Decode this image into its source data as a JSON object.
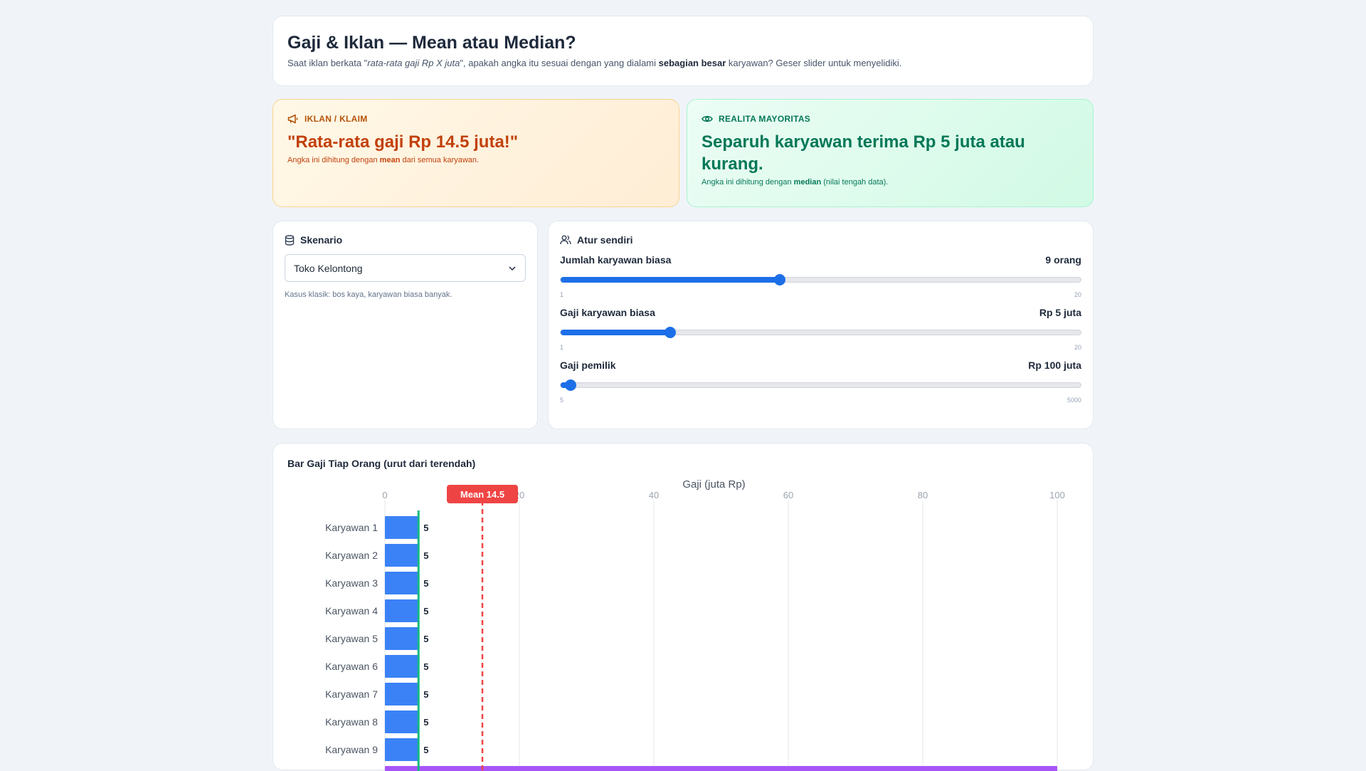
{
  "header": {
    "title": "Gaji & Iklan — Mean atau Median?",
    "subtitle_pre": "Saat iklan berkata \"",
    "subtitle_em": "rata-rata gaji Rp X juta",
    "subtitle_mid": "\", apakah angka itu sesuai dengan yang dialami ",
    "subtitle_strong": "sebagian besar",
    "subtitle_post": " karyawan? Geser slider untuk menyelidiki."
  },
  "claim_ad": {
    "icon": "megaphone-icon",
    "tag": "IKLAN / KLAIM",
    "headline": "\"Rata-rata gaji Rp 14.5 juta!\"",
    "note_pre": "Angka ini dihitung dengan ",
    "note_bold": "mean",
    "note_post": " dari semua karyawan."
  },
  "claim_real": {
    "icon": "eye-icon",
    "tag": "REALITA MAYORITAS",
    "headline": "Separuh karyawan terima Rp 5 juta atau kurang.",
    "note_pre": "Angka ini dihitung dengan ",
    "note_bold": "median",
    "note_post": " (nilai tengah data)."
  },
  "scenario": {
    "title": "Skenario",
    "icon": "database-icon",
    "selected": "Toko Kelontong",
    "hint": "Kasus klasik: bos kaya, karyawan biasa banyak."
  },
  "manual": {
    "title": "Atur sendiri",
    "icon": "users-icon",
    "sliders": [
      {
        "label": "Jumlah karyawan biasa",
        "value": "9 orang",
        "min": "1",
        "max": "20",
        "level": 0.421
      },
      {
        "label": "Gaji karyawan biasa",
        "value": "Rp 5 juta",
        "min": "1",
        "max": "20",
        "level": 0.2105
      },
      {
        "label": "Gaji pemilik",
        "value": "Rp 100 juta",
        "min": "5",
        "max": "5000",
        "level": 0.019
      }
    ]
  },
  "chart_data": {
    "type": "bar",
    "title": "Bar Gaji Tiap Orang (urut dari terendah)",
    "xlabel": "Gaji (juta Rp)",
    "xlim": [
      0,
      100
    ],
    "xticks": [
      0,
      20,
      40,
      60,
      80,
      100
    ],
    "mean_label": "Mean 14.5",
    "mean": 14.5,
    "median": 5,
    "categories": [
      "Karyawan 1",
      "Karyawan 2",
      "Karyawan 3",
      "Karyawan 4",
      "Karyawan 5",
      "Karyawan 6",
      "Karyawan 7",
      "Karyawan 8",
      "Karyawan 9"
    ],
    "values": [
      5,
      5,
      5,
      5,
      5,
      5,
      5,
      5,
      5
    ],
    "owner_value": 100,
    "colors": {
      "bar": "#3b82f6",
      "owner": "#a855f7",
      "mean": "#ef4444",
      "median": "#10b981"
    }
  }
}
